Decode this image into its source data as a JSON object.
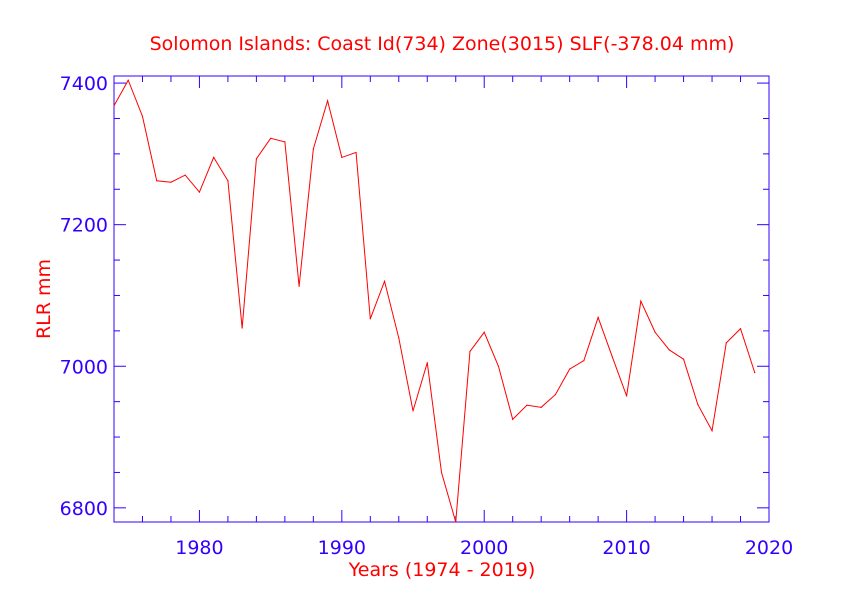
{
  "chart_data": {
    "type": "line",
    "title": "Solomon Islands:  Coast Id(734) Zone(3015) SLF(-378.04 mm)",
    "xlabel": "Years (1974 - 2019)",
    "ylabel": "RLR mm",
    "xlim": [
      1974,
      2020
    ],
    "ylim": [
      6780,
      7410
    ],
    "x_ticks": [
      1980,
      1990,
      2000,
      2010,
      2020
    ],
    "x_tick_labels": [
      "1980",
      "1990",
      "2000",
      "2010",
      "2020"
    ],
    "y_ticks": [
      6800,
      7000,
      7200,
      7400
    ],
    "y_tick_labels": [
      "6800",
      "7000",
      "7200",
      "7400"
    ],
    "grid": false,
    "colors": {
      "axes": "#3300ff",
      "line": "#ff0000",
      "title": "#ff0000",
      "tick_labels": "#3300ff"
    },
    "series": [
      {
        "x": [
          1974,
          1975,
          1976,
          1977,
          1978,
          1979,
          1980,
          1981,
          1982,
          1983,
          1984,
          1985,
          1986,
          1987,
          1988,
          1989,
          1990,
          1991,
          1992,
          1993,
          1994,
          1995,
          1996,
          1997,
          1998,
          1999,
          2000,
          2001,
          2002,
          2003,
          2004,
          2005,
          2006,
          2007,
          2008,
          2009,
          2010,
          2011,
          2012,
          2013,
          2014,
          2015,
          2016,
          2017,
          2018,
          2019
        ],
        "values": [
          7368,
          7404,
          7353,
          7262,
          7260,
          7270,
          7246,
          7295,
          7262,
          7054,
          7293,
          7322,
          7317,
          7113,
          7307,
          7375,
          7295,
          7302,
          7067,
          7120,
          7040,
          6937,
          7005,
          6850,
          6780,
          7021,
          7048,
          7000,
          6925,
          6945,
          6942,
          6960,
          6996,
          7008,
          7069,
          7013,
          6958,
          7092,
          7048,
          7023,
          7010,
          6946,
          6909,
          7033,
          7053,
          6991
        ]
      }
    ]
  }
}
